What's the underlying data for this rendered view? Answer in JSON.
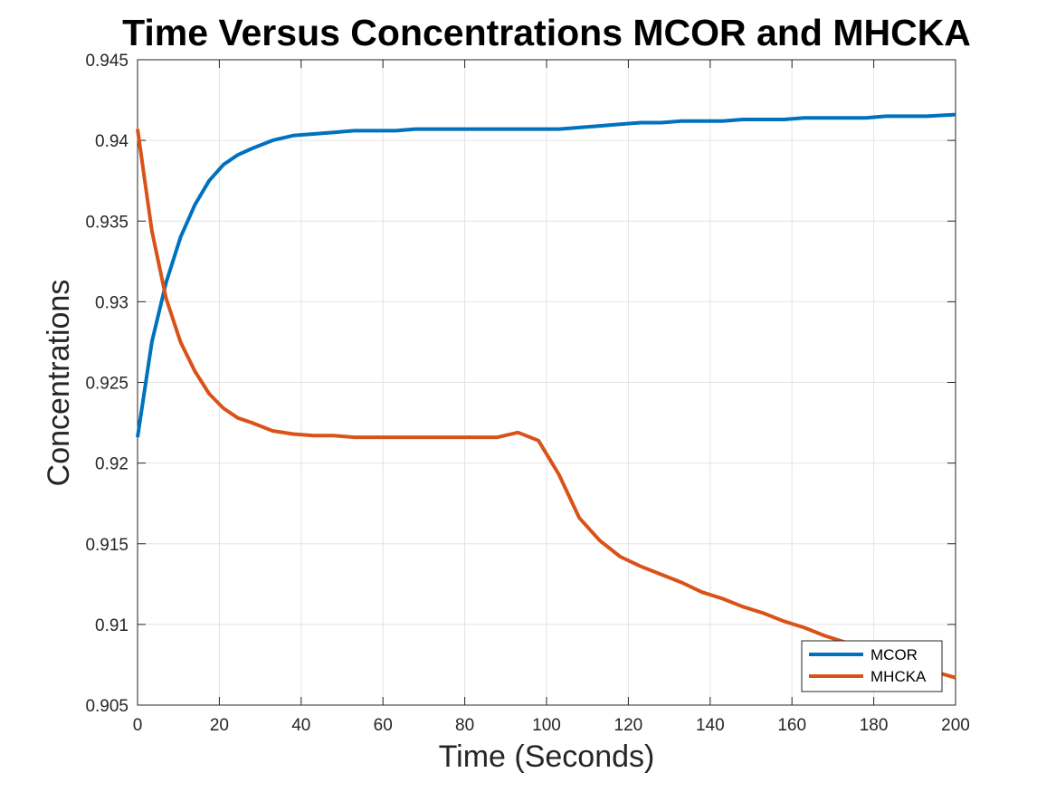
{
  "chart_data": {
    "type": "line",
    "title": "Time Versus Concentrations MCOR and MHCKA",
    "xlabel": "Time (Seconds)",
    "ylabel": "Concentrations",
    "xlim": [
      0,
      200
    ],
    "ylim": [
      0.905,
      0.945
    ],
    "xticks": [
      0,
      20,
      40,
      60,
      80,
      100,
      120,
      140,
      160,
      180,
      200
    ],
    "xtick_labels": [
      "0",
      "20",
      "40",
      "60",
      "80",
      "100",
      "120",
      "140",
      "160",
      "180",
      "200"
    ],
    "yticks": [
      0.905,
      0.91,
      0.915,
      0.92,
      0.925,
      0.93,
      0.935,
      0.94,
      0.945
    ],
    "ytick_labels": [
      "0.905",
      "0.91",
      "0.915",
      "0.92",
      "0.925",
      "0.93",
      "0.935",
      "0.94",
      "0.945"
    ],
    "grid": true,
    "legend_position": "bottom-right",
    "series": [
      {
        "name": "MCOR",
        "color": "#0072BD",
        "x": [
          0,
          3.5,
          7,
          10.5,
          14,
          17.5,
          21,
          24.5,
          28,
          33,
          38,
          43,
          48,
          53,
          58,
          63,
          68,
          73,
          78,
          83,
          88,
          93,
          98,
          103,
          108,
          113,
          118,
          123,
          128,
          133,
          138,
          143,
          148,
          153,
          158,
          163,
          168,
          173,
          178,
          183,
          188,
          193,
          200
        ],
        "y": [
          0.9216,
          0.9275,
          0.9312,
          0.934,
          0.936,
          0.9375,
          0.9385,
          0.9391,
          0.9395,
          0.94,
          0.9403,
          0.9404,
          0.9405,
          0.9406,
          0.9406,
          0.9406,
          0.9407,
          0.9407,
          0.9407,
          0.9407,
          0.9407,
          0.9407,
          0.9407,
          0.9407,
          0.9408,
          0.9409,
          0.941,
          0.9411,
          0.9411,
          0.9412,
          0.9412,
          0.9412,
          0.9413,
          0.9413,
          0.9413,
          0.9414,
          0.9414,
          0.9414,
          0.9414,
          0.9415,
          0.9415,
          0.9415,
          0.9416
        ]
      },
      {
        "name": "MHCKA",
        "color": "#D95319",
        "x": [
          0,
          3.5,
          7,
          10.5,
          14,
          17.5,
          21,
          24.5,
          28,
          33,
          38,
          43,
          48,
          53,
          58,
          63,
          68,
          73,
          78,
          83,
          88,
          93,
          98,
          103,
          108,
          113,
          118,
          123,
          128,
          133,
          138,
          143,
          148,
          153,
          158,
          163,
          168,
          173,
          178,
          183,
          188,
          193,
          200
        ],
        "y": [
          0.9407,
          0.9344,
          0.9302,
          0.9275,
          0.9257,
          0.9243,
          0.9234,
          0.9228,
          0.9225,
          0.922,
          0.9218,
          0.9217,
          0.9217,
          0.9216,
          0.9216,
          0.9216,
          0.9216,
          0.9216,
          0.9216,
          0.9216,
          0.9216,
          0.9219,
          0.9214,
          0.9193,
          0.9166,
          0.9152,
          0.9142,
          0.9136,
          0.9131,
          0.9126,
          0.912,
          0.9116,
          0.9111,
          0.9107,
          0.9102,
          0.9098,
          0.9093,
          0.9089,
          0.9085,
          0.908,
          0.9076,
          0.9072,
          0.9067
        ]
      }
    ]
  }
}
